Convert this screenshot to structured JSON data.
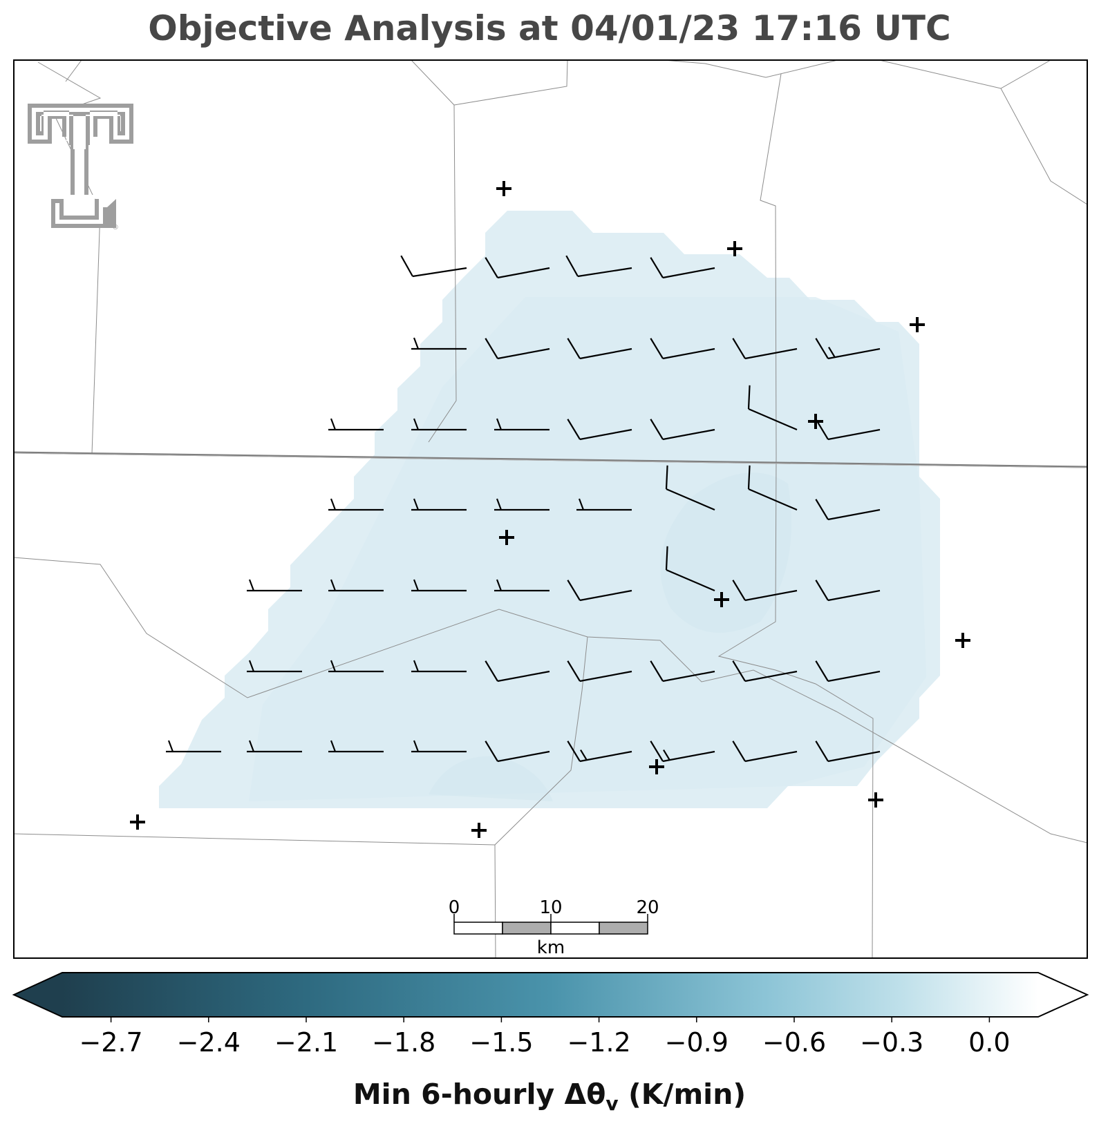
{
  "title": "Objective Analysis at 04/01/23 17:16 UTC",
  "colorbar": {
    "label_main": "Min 6-hourly Δθ",
    "label_sub": "v",
    "label_units": " (K/min)",
    "ticks": [
      "−2.7",
      "−2.4",
      "−2.1",
      "−1.8",
      "−1.5",
      "−1.2",
      "−0.9",
      "−0.6",
      "−0.3",
      "0.0"
    ],
    "colors": {
      "dark": "#1f3f4e",
      "mid": "#4a93ab",
      "light": "#a9d3e1",
      "white": "#ffffff"
    },
    "vmin": -2.85,
    "vmax": 0.15
  },
  "scale_bar": {
    "labels": [
      "0",
      "10",
      "20"
    ],
    "unit": "km"
  },
  "logo": {
    "name": "texas-tech-double-t-logo",
    "mark": "®"
  },
  "analysis_field": {
    "value_range": [
      -0.6,
      -0.3
    ],
    "fill": "#dfeef4",
    "inner_fill": "#d9ebf2"
  },
  "wind_barbs": {
    "rows": [
      [
        {
          "col": 3,
          "dir": "W-NW",
          "spd": 10
        },
        {
          "col": 4,
          "dir": "NW",
          "spd": 10
        },
        {
          "col": 5,
          "dir": "W-NW",
          "spd": 10
        },
        {
          "col": 6,
          "dir": "NW",
          "spd": 10
        }
      ],
      [
        {
          "col": 3,
          "dir": "W",
          "spd": 5
        },
        {
          "col": 4,
          "dir": "NW",
          "spd": 10
        },
        {
          "col": 5,
          "dir": "NW",
          "spd": 10
        },
        {
          "col": 6,
          "dir": "NW",
          "spd": 10
        },
        {
          "col": 7,
          "dir": "NW",
          "spd": 10
        },
        {
          "col": 8,
          "dir": "NW",
          "spd": 15
        }
      ],
      [
        {
          "col": 2,
          "dir": "W",
          "spd": 5
        },
        {
          "col": 3,
          "dir": "W",
          "spd": 5
        },
        {
          "col": 4,
          "dir": "W",
          "spd": 5
        },
        {
          "col": 5,
          "dir": "NW",
          "spd": 10
        },
        {
          "col": 6,
          "dir": "NW",
          "spd": 10
        },
        {
          "col": 7,
          "dir": "SW",
          "spd": 10
        },
        {
          "col": 8,
          "dir": "NW",
          "spd": 10
        }
      ],
      [
        {
          "col": 2,
          "dir": "W",
          "spd": 5
        },
        {
          "col": 3,
          "dir": "W",
          "spd": 5
        },
        {
          "col": 4,
          "dir": "W",
          "spd": 5
        },
        {
          "col": 5,
          "dir": "W",
          "spd": 5
        },
        {
          "col": 6,
          "dir": "SW",
          "spd": 10
        },
        {
          "col": 7,
          "dir": "SW",
          "spd": 10
        },
        {
          "col": 8,
          "dir": "NW",
          "spd": 10
        }
      ],
      [
        {
          "col": 1,
          "dir": "W",
          "spd": 5
        },
        {
          "col": 2,
          "dir": "W",
          "spd": 5
        },
        {
          "col": 3,
          "dir": "W",
          "spd": 5
        },
        {
          "col": 4,
          "dir": "W",
          "spd": 5
        },
        {
          "col": 5,
          "dir": "NW",
          "spd": 10
        },
        {
          "col": 6,
          "dir": "SW",
          "spd": 10
        },
        {
          "col": 7,
          "dir": "NW",
          "spd": 10
        },
        {
          "col": 8,
          "dir": "NW",
          "spd": 10
        }
      ],
      [
        {
          "col": 1,
          "dir": "W",
          "spd": 5
        },
        {
          "col": 2,
          "dir": "W",
          "spd": 5
        },
        {
          "col": 3,
          "dir": "W",
          "spd": 5
        },
        {
          "col": 4,
          "dir": "NW",
          "spd": 10
        },
        {
          "col": 5,
          "dir": "NW",
          "spd": 10
        },
        {
          "col": 6,
          "dir": "NW",
          "spd": 10
        },
        {
          "col": 7,
          "dir": "NW",
          "spd": 10
        },
        {
          "col": 8,
          "dir": "NW",
          "spd": 10
        }
      ],
      [
        {
          "col": 0,
          "dir": "W",
          "spd": 5
        },
        {
          "col": 1,
          "dir": "W",
          "spd": 5
        },
        {
          "col": 2,
          "dir": "W",
          "spd": 5
        },
        {
          "col": 3,
          "dir": "W",
          "spd": 5
        },
        {
          "col": 4,
          "dir": "NW",
          "spd": 10
        },
        {
          "col": 5,
          "dir": "NW",
          "spd": 15
        },
        {
          "col": 6,
          "dir": "NW",
          "spd": 15
        },
        {
          "col": 7,
          "dir": "NW",
          "spd": 10
        },
        {
          "col": 8,
          "dir": "NW",
          "spd": 10
        }
      ]
    ]
  }
}
